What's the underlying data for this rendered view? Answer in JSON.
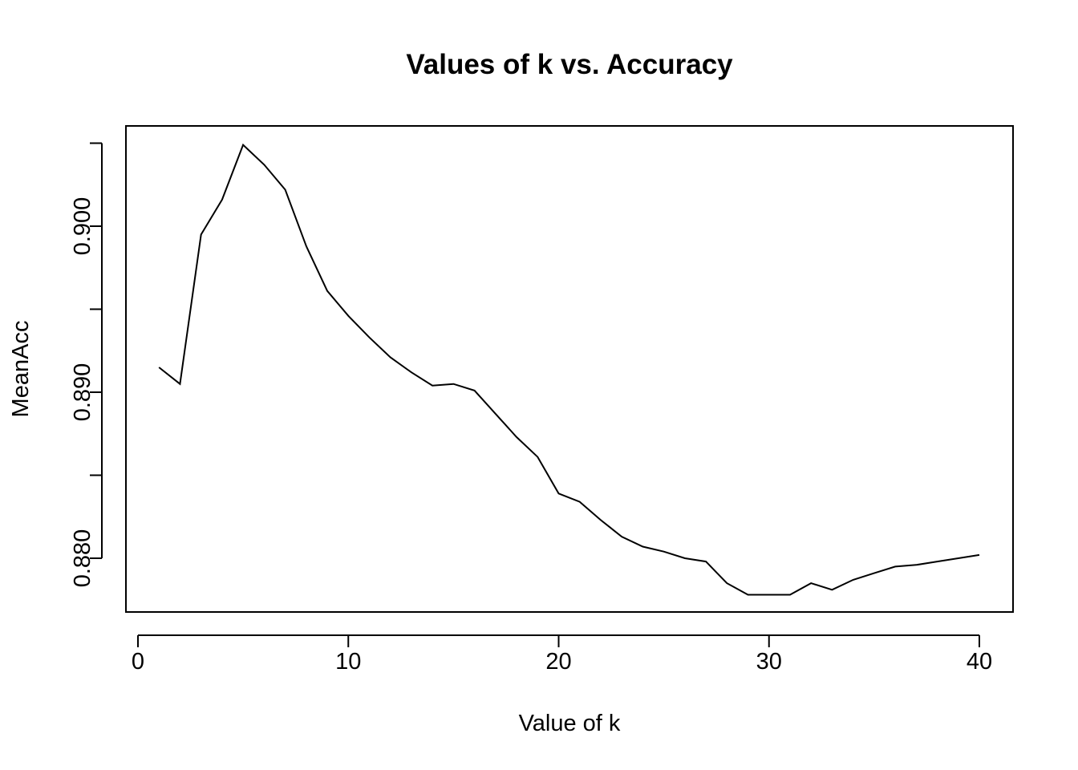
{
  "chart_data": {
    "type": "line",
    "title": "Values of k vs. Accuracy",
    "xlabel": "Value of k",
    "ylabel": "MeanAcc",
    "xlim": [
      0,
      40
    ],
    "ylim": [
      0.877,
      0.9055
    ],
    "x_ticks": [
      0,
      10,
      20,
      30,
      40
    ],
    "y_ticks": [
      0.88,
      0.885,
      0.89,
      0.895,
      0.9,
      0.905
    ],
    "y_tick_labels": [
      "0.880",
      "",
      "0.890",
      "",
      "0.900",
      ""
    ],
    "grid": false,
    "legend": "none",
    "line_color": "#000000",
    "series": [
      {
        "x": [
          1,
          2,
          3,
          4,
          5,
          6,
          7,
          8,
          9,
          10,
          11,
          12,
          13,
          14,
          15,
          16,
          17,
          18,
          19,
          20,
          21,
          22,
          23,
          24,
          25,
          26,
          27,
          28,
          29,
          30,
          31,
          32,
          33,
          34,
          35,
          36,
          37,
          38,
          39,
          40
        ],
        "values": [
          0.8915,
          0.8905,
          0.8995,
          0.9016,
          0.9049,
          0.9037,
          0.9022,
          0.8988,
          0.8961,
          0.8946,
          0.8933,
          0.8921,
          0.8912,
          0.8904,
          0.8905,
          0.8901,
          0.8887,
          0.8873,
          0.8861,
          0.8839,
          0.8834,
          0.8823,
          0.8813,
          0.8807,
          0.8804,
          0.88,
          0.8798,
          0.8785,
          0.8778,
          0.8778,
          0.8778,
          0.8785,
          0.8781,
          0.8787,
          0.8791,
          0.8795,
          0.8796,
          0.8798,
          0.88,
          0.8802
        ]
      }
    ]
  }
}
